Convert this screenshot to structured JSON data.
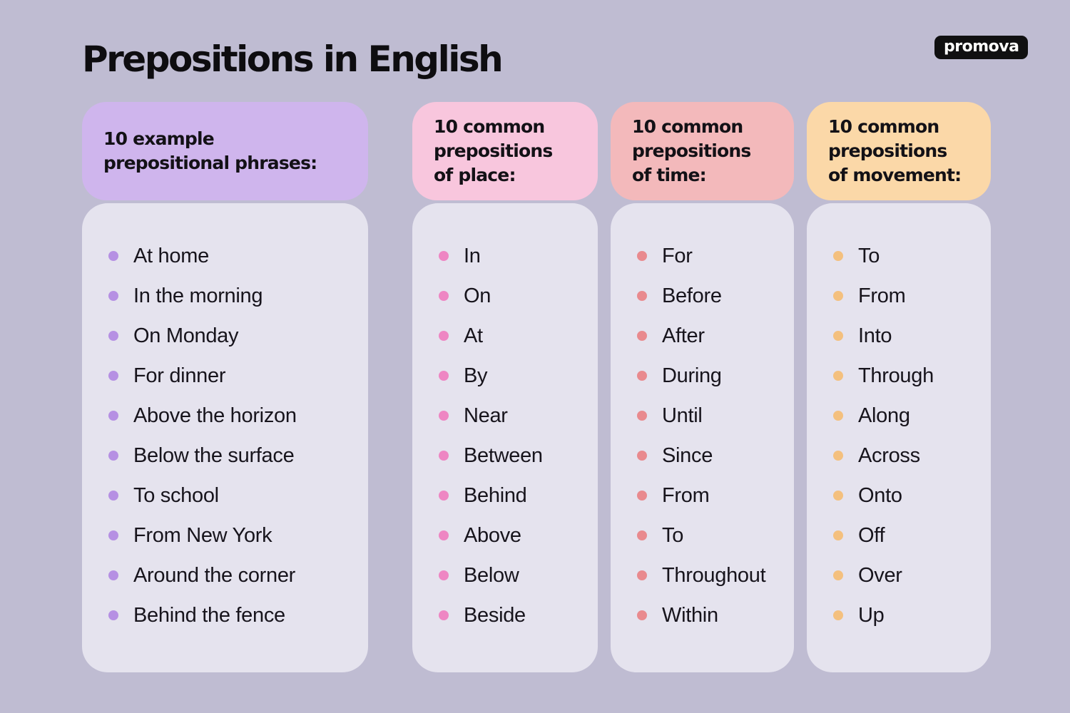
{
  "page": {
    "title": "Prepositions in English",
    "background_color": "#bfbcd2",
    "card_body_color": "#e5e3ee",
    "item_text_color": "#17141c"
  },
  "logo": {
    "text": "promova",
    "bg_color": "#101011",
    "text_color": "#ffffff"
  },
  "columns": [
    {
      "id": "example-prepositional-phrases",
      "header_text": "10 example prepositional phrases:",
      "header_lines": [
        "10 example",
        "prepositional phrases:"
      ],
      "header_bg": "#cfb5ed",
      "bullet_color": "#b690e3",
      "items": [
        "At home",
        "In the morning",
        "On Monday",
        "For dinner",
        "Above the horizon",
        "Below the surface",
        "To school",
        "From New York",
        "Around the corner",
        "Behind the fence"
      ]
    },
    {
      "id": "prepositions-of-place",
      "header_text": "10 common prepositions of place:",
      "header_lines": [
        "10 common",
        "prepositions",
        "of place:"
      ],
      "header_bg": "#f8c6dd",
      "bullet_color": "#ee86c3",
      "items": [
        "In",
        "On",
        "At",
        "By",
        "Near",
        "Between",
        "Behind",
        "Above",
        "Below",
        "Beside"
      ]
    },
    {
      "id": "prepositions-of-time",
      "header_text": "10 common prepositions of time:",
      "header_lines": [
        "10 common",
        "prepositions",
        "of time:"
      ],
      "header_bg": "#f3b9bb",
      "bullet_color": "#e98a8e",
      "items": [
        "For",
        "Before",
        "After",
        "During",
        "Until",
        "Since",
        "From",
        "To",
        "Throughout",
        "Within"
      ]
    },
    {
      "id": "prepositions-of-movement",
      "header_text": "10 common prepositions of movement:",
      "header_lines": [
        "10 common",
        "prepositions",
        "of movement:"
      ],
      "header_bg": "#fbd8a8",
      "bullet_color": "#f4c07e",
      "items": [
        "To",
        "From",
        "Into",
        "Through",
        "Along",
        "Across",
        "Onto",
        "Off",
        "Over",
        "Up"
      ]
    }
  ]
}
